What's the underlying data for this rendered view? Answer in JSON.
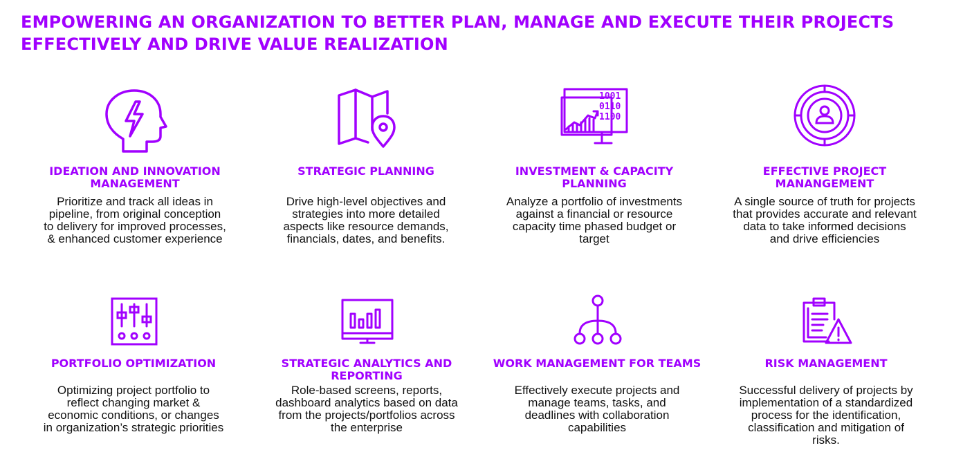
{
  "header": {
    "title_line1": "EMPOWERING AN ORGANIZATION TO BETTER PLAN, MANAGE AND EXECUTE THEIR PROJECTS",
    "title_line2": "EFFECTIVELY AND DRIVE VALUE REALIZATION"
  },
  "accent_color": "#a100ff",
  "cards": [
    {
      "icon": "brain-lightning-icon",
      "title_lines": [
        "IDEATION AND INNOVATION",
        "MANAGEMENT"
      ],
      "desc_lines": [
        "Prioritize and track all ideas in",
        "pipeline, from original conception",
        "to delivery for improved processes,",
        "& enhanced customer experience"
      ]
    },
    {
      "icon": "map-pin-icon",
      "title_lines": [
        "STRATEGIC PLANNING"
      ],
      "desc_lines": [
        "Drive high-level objectives and",
        "strategies into more detailed",
        "aspects like resource demands,",
        "financials, dates, and benefits."
      ]
    },
    {
      "icon": "investment-chart-icon",
      "title_lines": [
        "INVESTMENT & CAPACITY",
        "PLANNING"
      ],
      "desc_lines": [
        "Analyze a portfolio of investments",
        "against a financial or resource",
        "capacity time phased budget or",
        "target"
      ]
    },
    {
      "icon": "target-user-icon",
      "title_lines": [
        "EFFECTIVE PROJECT",
        "MANANGEMENT"
      ],
      "desc_lines": [
        "A single source of truth for projects",
        "that provides accurate and relevant",
        "data to take informed decisions",
        "and drive efficiencies"
      ]
    },
    {
      "icon": "sliders-icon",
      "title_lines": [
        "PORTFOLIO OPTIMIZATION"
      ],
      "desc_lines": [
        "Optimizing project portfolio to",
        "reflect changing market &",
        "economic conditions, or changes",
        "in organization’s strategic priorities"
      ]
    },
    {
      "icon": "monitor-bar-chart-icon",
      "title_lines": [
        "STRATEGIC ANALYTICS AND",
        "REPORTING"
      ],
      "desc_lines": [
        "Role-based screens, reports,",
        "dashboard analytics based on data",
        "from the projects/portfolios across",
        "the enterprise"
      ]
    },
    {
      "icon": "hierarchy-icon",
      "title_lines": [
        "WORK MANAGEMENT FOR TEAMS"
      ],
      "desc_lines": [
        "Effectively execute projects and",
        "manage teams, tasks, and",
        "deadlines with collaboration",
        "capabilities"
      ]
    },
    {
      "icon": "clipboard-warning-icon",
      "title_lines": [
        "RISK MANAGEMENT"
      ],
      "desc_lines": [
        "Successful delivery of projects  by",
        "implementation of a standardized",
        "process for the identification,",
        "classification and mitigation of",
        "risks."
      ]
    }
  ]
}
